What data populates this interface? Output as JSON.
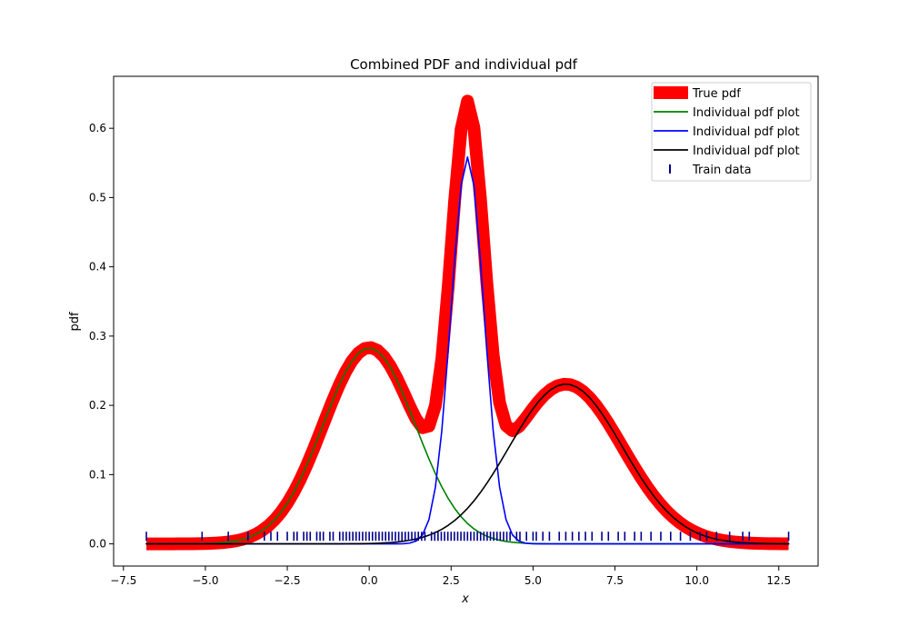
{
  "chart_data": {
    "type": "line",
    "title": "Combined PDF and individual pdf",
    "xlabel": "x",
    "ylabel": "pdf",
    "xlim": [
      -7.8,
      13.7
    ],
    "ylim": [
      -0.032,
      0.675
    ],
    "xticks": [
      -7.5,
      -5.0,
      -2.5,
      0.0,
      2.5,
      5.0,
      7.5,
      10.0,
      12.5
    ],
    "xtick_labels": [
      "−7.5",
      "−5.0",
      "−2.5",
      "0.0",
      "2.5",
      "5.0",
      "7.5",
      "10.0",
      "12.5"
    ],
    "yticks": [
      0.0,
      0.1,
      0.2,
      0.3,
      0.4,
      0.5,
      0.6
    ],
    "ytick_labels": [
      "0.0",
      "0.1",
      "0.2",
      "0.3",
      "0.4",
      "0.5",
      "0.6"
    ],
    "grid": false,
    "legend_position": "top-right",
    "x_range": [
      -6.8,
      12.8
    ],
    "series": [
      {
        "name": "True pdf",
        "color": "#ff0000",
        "style": "thick-line",
        "components": [
          {
            "mean": 0.0,
            "sd": 1.41,
            "weight": 1.0
          },
          {
            "mean": 3.0,
            "sd": 0.5,
            "weight": 0.7
          },
          {
            "mean": 6.0,
            "sd": 1.73,
            "weight": 1.0
          }
        ]
      },
      {
        "name": "Individual pdf plot",
        "color": "#008000",
        "style": "line",
        "components": [
          {
            "mean": 0.0,
            "sd": 1.41,
            "weight": 1.0
          }
        ]
      },
      {
        "name": "Individual pdf plot",
        "color": "#0000ff",
        "style": "line",
        "components": [
          {
            "mean": 3.0,
            "sd": 0.5,
            "weight": 0.7
          }
        ]
      },
      {
        "name": "Individual pdf plot",
        "color": "#000000",
        "style": "line",
        "components": [
          {
            "mean": 6.0,
            "sd": 1.73,
            "weight": 1.0
          }
        ]
      },
      {
        "name": "Train data",
        "color": "#00008b",
        "style": "rug",
        "y": 0.011,
        "x": [
          -6.8,
          -5.1,
          -4.3,
          -3.7,
          -3.2,
          -3.0,
          -2.8,
          -2.5,
          -2.3,
          -2.2,
          -2.0,
          -1.9,
          -1.8,
          -1.6,
          -1.5,
          -1.4,
          -1.2,
          -1.1,
          -0.9,
          -0.8,
          -0.7,
          -0.6,
          -0.5,
          -0.4,
          -0.3,
          -0.2,
          -0.1,
          0.0,
          0.1,
          0.2,
          0.3,
          0.4,
          0.5,
          0.6,
          0.7,
          0.8,
          0.9,
          1.0,
          1.1,
          1.2,
          1.3,
          1.4,
          1.5,
          1.6,
          1.7,
          1.9,
          2.0,
          2.1,
          2.2,
          2.3,
          2.4,
          2.5,
          2.6,
          2.7,
          2.8,
          2.9,
          3.0,
          3.1,
          3.2,
          3.3,
          3.4,
          3.5,
          3.6,
          3.7,
          3.8,
          3.9,
          4.0,
          4.1,
          4.2,
          4.3,
          4.5,
          4.6,
          4.8,
          5.0,
          5.1,
          5.3,
          5.5,
          5.8,
          6.0,
          6.2,
          6.4,
          6.6,
          6.8,
          7.1,
          7.3,
          7.6,
          7.8,
          8.1,
          8.3,
          8.6,
          8.9,
          9.2,
          9.5,
          9.8,
          10.1,
          10.3,
          10.6,
          11.0,
          11.4,
          11.6,
          12.8
        ]
      }
    ]
  }
}
